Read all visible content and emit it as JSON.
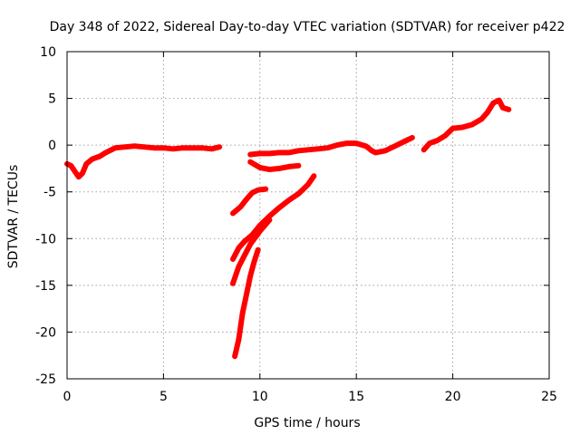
{
  "chart_data": {
    "type": "line",
    "title": "Day 348 of 2022, Sidereal Day-to-day VTEC variation (SDTVAR) for receiver p422",
    "xlabel": "GPS time / hours",
    "ylabel": "SDTVAR / TECUs",
    "xlim": [
      0,
      25
    ],
    "ylim": [
      -25,
      10
    ],
    "xticks": [
      0,
      5,
      10,
      15,
      20,
      25
    ],
    "yticks": [
      -25,
      -20,
      -15,
      -10,
      -5,
      0,
      5,
      10
    ],
    "grid": true,
    "series_color": "#ff0000",
    "series": [
      {
        "points": [
          [
            0.0,
            -2.0
          ],
          [
            0.2,
            -2.2
          ],
          [
            0.4,
            -2.8
          ],
          [
            0.6,
            -3.4
          ],
          [
            0.8,
            -3.0
          ],
          [
            1.0,
            -2.0
          ],
          [
            1.3,
            -1.5
          ],
          [
            1.7,
            -1.2
          ],
          [
            2.0,
            -0.8
          ],
          [
            2.5,
            -0.3
          ],
          [
            3.0,
            -0.2
          ],
          [
            3.5,
            -0.1
          ],
          [
            4.0,
            -0.2
          ],
          [
            4.5,
            -0.3
          ],
          [
            5.0,
            -0.3
          ],
          [
            5.5,
            -0.4
          ],
          [
            6.0,
            -0.3
          ],
          [
            6.5,
            -0.3
          ],
          [
            7.0,
            -0.3
          ],
          [
            7.5,
            -0.4
          ],
          [
            7.9,
            -0.2
          ]
        ]
      },
      {
        "points": [
          [
            9.5,
            -1.0
          ],
          [
            10.0,
            -0.9
          ],
          [
            10.5,
            -0.9
          ],
          [
            11.0,
            -0.8
          ],
          [
            11.5,
            -0.8
          ],
          [
            12.0,
            -0.6
          ],
          [
            12.5,
            -0.5
          ],
          [
            13.0,
            -0.4
          ],
          [
            13.5,
            -0.3
          ],
          [
            14.0,
            0.0
          ],
          [
            14.5,
            0.2
          ],
          [
            15.0,
            0.2
          ],
          [
            15.5,
            -0.1
          ],
          [
            15.8,
            -0.6
          ],
          [
            16.0,
            -0.8
          ],
          [
            16.5,
            -0.6
          ],
          [
            17.0,
            -0.1
          ],
          [
            17.5,
            0.4
          ],
          [
            17.9,
            0.8
          ]
        ]
      },
      {
        "points": [
          [
            9.5,
            -1.8
          ],
          [
            10.0,
            -2.4
          ],
          [
            10.5,
            -2.6
          ],
          [
            11.0,
            -2.5
          ],
          [
            11.5,
            -2.3
          ],
          [
            12.0,
            -2.2
          ]
        ]
      },
      {
        "points": [
          [
            8.6,
            -7.3
          ],
          [
            9.0,
            -6.6
          ],
          [
            9.3,
            -5.8
          ],
          [
            9.6,
            -5.1
          ],
          [
            9.9,
            -4.8
          ],
          [
            10.3,
            -4.7
          ]
        ]
      },
      {
        "points": [
          [
            8.6,
            -12.2
          ],
          [
            8.9,
            -11.0
          ],
          [
            9.2,
            -10.3
          ],
          [
            9.6,
            -9.6
          ],
          [
            10.0,
            -8.6
          ],
          [
            10.5,
            -7.6
          ],
          [
            11.0,
            -6.7
          ],
          [
            11.5,
            -5.9
          ],
          [
            12.0,
            -5.2
          ],
          [
            12.5,
            -4.2
          ],
          [
            12.8,
            -3.3
          ]
        ]
      },
      {
        "points": [
          [
            8.6,
            -14.8
          ],
          [
            8.9,
            -13.0
          ],
          [
            9.2,
            -11.8
          ],
          [
            9.5,
            -10.6
          ],
          [
            10.0,
            -9.2
          ],
          [
            10.5,
            -8.0
          ]
        ]
      },
      {
        "points": [
          [
            8.7,
            -22.6
          ],
          [
            8.9,
            -20.8
          ],
          [
            9.1,
            -18.0
          ],
          [
            9.3,
            -16.0
          ],
          [
            9.5,
            -14.0
          ],
          [
            9.7,
            -12.5
          ],
          [
            9.9,
            -11.2
          ]
        ]
      },
      {
        "points": [
          [
            18.5,
            -0.5
          ],
          [
            18.8,
            0.2
          ],
          [
            19.2,
            0.5
          ],
          [
            19.6,
            1.0
          ],
          [
            20.0,
            1.8
          ],
          [
            20.5,
            1.9
          ],
          [
            21.0,
            2.2
          ],
          [
            21.5,
            2.8
          ],
          [
            21.8,
            3.5
          ],
          [
            22.1,
            4.5
          ],
          [
            22.4,
            4.8
          ],
          [
            22.6,
            4.0
          ],
          [
            22.9,
            3.8
          ]
        ]
      }
    ]
  }
}
